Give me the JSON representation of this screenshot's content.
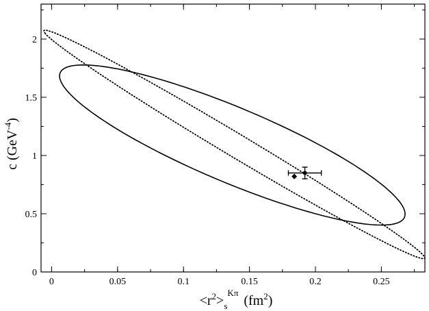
{
  "chart_data": {
    "type": "scatter",
    "title": "",
    "xlabel": {
      "base": "<r",
      "sup": "2",
      "close": ">",
      "sub": "s",
      "sup2": "Kπ",
      "unit_open": "(fm",
      "unit_sup": "2",
      "unit_close": ")"
    },
    "ylabel": {
      "base": "c  (GeV",
      "sup": "-4",
      "close": ")"
    },
    "xlim": [
      -0.008,
      0.283
    ],
    "ylim": [
      0,
      2.3
    ],
    "xticks": [
      0,
      0.05,
      0.1,
      0.15,
      0.2,
      0.25
    ],
    "xtick_labels": [
      "0",
      "0.05",
      "0.1",
      "0.15",
      "0.2",
      "0.25"
    ],
    "yticks": [
      0,
      0.5,
      1,
      1.5,
      2
    ],
    "ytick_labels": [
      "0",
      "0.5",
      "1",
      "1.5",
      "2"
    ],
    "grid": false,
    "legend": "none",
    "ellipses": [
      {
        "style": "solid",
        "center": [
          0.137,
          1.09
        ],
        "extent_points": [
          [
            0.01,
            1.75
          ],
          [
            0.264,
            0.43
          ],
          [
            0.02,
            1.81
          ],
          [
            0.257,
            0.38
          ]
        ]
      },
      {
        "style": "dotted",
        "center": [
          0.1385,
          1.095
        ],
        "extent_points": [
          [
            -0.005,
            2.05
          ],
          [
            0.275,
            0.25
          ],
          [
            0.0,
            1.98
          ],
          [
            0.266,
            0.13
          ]
        ]
      }
    ],
    "points": [
      {
        "marker": "circle",
        "x": 0.192,
        "y": 0.85,
        "xerr": [
          0.0125,
          0.0125
        ],
        "yerr": [
          0.05,
          0.05
        ]
      },
      {
        "marker": "diamond",
        "x": 0.184,
        "y": 0.82
      }
    ]
  }
}
